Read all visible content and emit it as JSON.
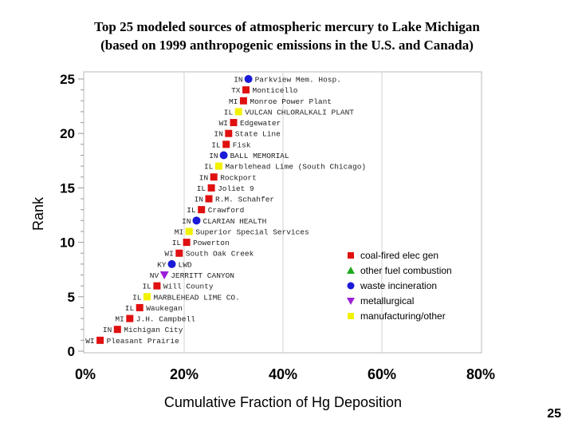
{
  "header": {
    "title_line1": "Top 25 modeled sources of atmospheric mercury to Lake Michigan",
    "title_line2": "(based on 1999 anthropogenic emissions in the U.S. and Canada)"
  },
  "slide": {
    "page_number": "25"
  },
  "chart_data": {
    "type": "scatter",
    "xlabel": "Cumulative Fraction of Hg Deposition",
    "ylabel": "Rank",
    "xlim": [
      0,
      80
    ],
    "ylim": [
      0,
      25
    ],
    "x_ticks": [
      "0%",
      "20%",
      "40%",
      "60%",
      "80%"
    ],
    "y_ticks": [
      "0",
      "5",
      "10",
      "15",
      "20",
      "25"
    ],
    "grid": "vertical",
    "legend_position": "lower-right",
    "categories": {
      "coal": {
        "name": "coal-fired elec gen",
        "color": "#e01010",
        "marker": "square"
      },
      "fuel": {
        "name": "other fuel combustion",
        "color": "#1fa81f",
        "marker": "triangle-up"
      },
      "waste": {
        "name": "waste incineration",
        "color": "#1a1ad8",
        "marker": "circle"
      },
      "metal": {
        "name": "metallurgical",
        "color": "#9b1fd6",
        "marker": "triangle-down"
      },
      "manuf": {
        "name": "manufacturing/other",
        "color": "#f2f200",
        "marker": "square"
      }
    },
    "points": [
      {
        "rank": 1,
        "x": 3.0,
        "state": "WI",
        "name": "Pleasant Prairie",
        "cat": "coal"
      },
      {
        "rank": 2,
        "x": 6.5,
        "state": "IN",
        "name": "Michigan City",
        "cat": "coal"
      },
      {
        "rank": 3,
        "x": 9.0,
        "state": "MI",
        "name": "J.H. Campbell",
        "cat": "coal"
      },
      {
        "rank": 4,
        "x": 11.0,
        "state": "IL",
        "name": "Waukegan",
        "cat": "coal"
      },
      {
        "rank": 5,
        "x": 12.5,
        "state": "IL",
        "name": "MARBLEHEAD LIME CO.",
        "cat": "manuf"
      },
      {
        "rank": 6,
        "x": 14.5,
        "state": "IL",
        "name": "Will County",
        "cat": "coal"
      },
      {
        "rank": 7,
        "x": 16.0,
        "state": "NV",
        "name": "JERRITT CANYON",
        "cat": "metal"
      },
      {
        "rank": 8,
        "x": 17.5,
        "state": "KY",
        "name": "LWD",
        "cat": "waste"
      },
      {
        "rank": 9,
        "x": 19.0,
        "state": "WI",
        "name": "South Oak Creek",
        "cat": "coal"
      },
      {
        "rank": 10,
        "x": 20.5,
        "state": "IL",
        "name": "Powerton",
        "cat": "coal"
      },
      {
        "rank": 11,
        "x": 21.0,
        "state": "MI",
        "name": "Superior Special Services",
        "cat": "manuf"
      },
      {
        "rank": 12,
        "x": 22.5,
        "state": "IN",
        "name": "CLARIAN HEALTH",
        "cat": "waste"
      },
      {
        "rank": 13,
        "x": 23.5,
        "state": "IL",
        "name": "Crawford",
        "cat": "coal"
      },
      {
        "rank": 14,
        "x": 25.0,
        "state": "IN",
        "name": "R.M. Schahfer",
        "cat": "coal"
      },
      {
        "rank": 15,
        "x": 25.5,
        "state": "IL",
        "name": "Joliet 9",
        "cat": "coal"
      },
      {
        "rank": 16,
        "x": 26.0,
        "state": "IN",
        "name": "Rockport",
        "cat": "coal"
      },
      {
        "rank": 17,
        "x": 27.0,
        "state": "IL",
        "name": "Marblehead Lime (South Chicago)",
        "cat": "manuf"
      },
      {
        "rank": 18,
        "x": 28.0,
        "state": "IN",
        "name": "BALL MEMORIAL",
        "cat": "waste"
      },
      {
        "rank": 19,
        "x": 28.5,
        "state": "IL",
        "name": "Fisk",
        "cat": "coal"
      },
      {
        "rank": 20,
        "x": 29.0,
        "state": "IN",
        "name": "State Line",
        "cat": "coal"
      },
      {
        "rank": 21,
        "x": 30.0,
        "state": "WI",
        "name": "Edgewater",
        "cat": "coal"
      },
      {
        "rank": 22,
        "x": 31.0,
        "state": "IL",
        "name": "VULCAN CHLORALKALI PLANT",
        "cat": "manuf"
      },
      {
        "rank": 23,
        "x": 32.0,
        "state": "MI",
        "name": "Monroe Power Plant",
        "cat": "coal"
      },
      {
        "rank": 24,
        "x": 32.5,
        "state": "TX",
        "name": "Monticello",
        "cat": "coal"
      },
      {
        "rank": 25,
        "x": 33.0,
        "state": "IN",
        "name": "Parkview Mem. Hosp.",
        "cat": "waste"
      }
    ]
  }
}
